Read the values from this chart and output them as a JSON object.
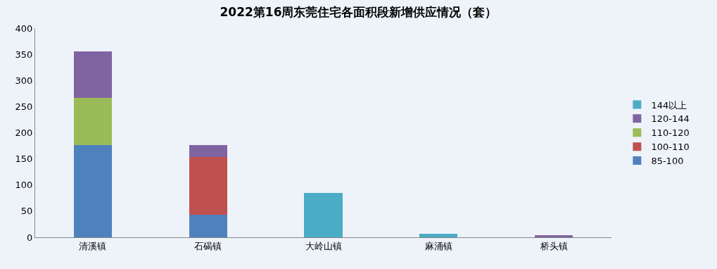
{
  "chart_data": {
    "type": "bar",
    "title": "2022第16周东莞住宅各面积段新增供应情况（套）",
    "categories": [
      "清溪镇",
      "石碣镇",
      "大岭山镇",
      "麻涌镇",
      "桥头镇"
    ],
    "stacked": true,
    "series": [
      {
        "name": "85-100",
        "color": "#4f81bd",
        "values": [
          177,
          43,
          null,
          null,
          null
        ]
      },
      {
        "name": "100-110",
        "color": "#c0504d",
        "values": [
          null,
          111,
          null,
          null,
          null
        ]
      },
      {
        "name": "110-120",
        "color": "#9bbb59",
        "values": [
          89,
          null,
          null,
          null,
          null
        ]
      },
      {
        "name": "120-144",
        "color": "#8064a2",
        "values": [
          90,
          22,
          null,
          null,
          4
        ]
      },
      {
        "name": "144以上",
        "color": "#4bacc6",
        "values": [
          null,
          null,
          85,
          7,
          null
        ]
      }
    ],
    "ylim": [
      0,
      400
    ],
    "yticks": [
      0,
      50,
      100,
      150,
      200,
      250,
      300,
      350,
      400
    ],
    "legend": "right"
  }
}
